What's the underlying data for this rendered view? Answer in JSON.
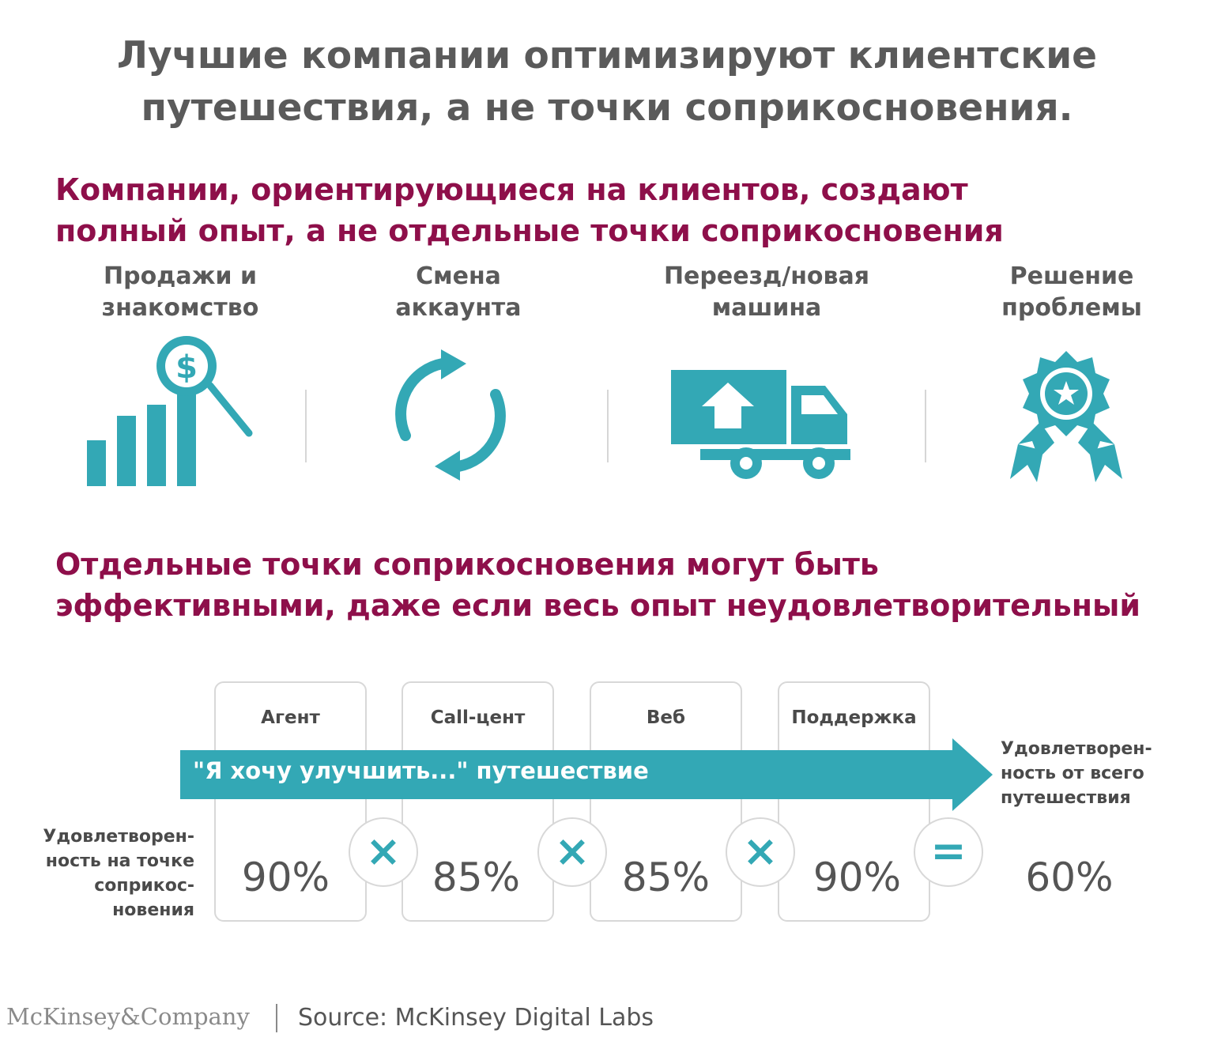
{
  "title": {
    "line1": "Лучшие компании оптимизируют клиентские",
    "line2": "путешествия, а не точки соприкосновения."
  },
  "section1": {
    "line1": "Компании, ориентирующиеся на клиентов, создают",
    "line2": "полный опыт, а не отдельные точки соприкосновения",
    "categories": [
      {
        "line1": "Продажи и",
        "line2": "знакомство",
        "icon": "sales-growth-icon"
      },
      {
        "line1": "Смена",
        "line2": "аккаунта",
        "icon": "refresh-cycle-icon"
      },
      {
        "line1": "Переезд/новая",
        "line2": "машина",
        "icon": "moving-truck-icon"
      },
      {
        "line1": "Решение",
        "line2": "проблемы",
        "icon": "award-ribbon-icon"
      }
    ]
  },
  "section2": {
    "line1": "Отдельные точки соприкосновения могут быть",
    "line2": "эффективными, даже если весь опыт неудовлетворительный"
  },
  "journey": {
    "arrow_label": "\"Я хочу улучшить...\" путешествие",
    "touchpoint_label": {
      "line1": "Удовлетворен-",
      "line2": "ность на точке",
      "line3": "соприкос-",
      "line4": "новения"
    },
    "journey_label": {
      "line1": "Удовлетворен-",
      "line2": "ность от всего",
      "line3": "путешествия"
    },
    "channels": [
      {
        "name": "Агент",
        "value": "90%"
      },
      {
        "name": "Call-цент",
        "value": "85%"
      },
      {
        "name": "Веб",
        "value": "85%"
      },
      {
        "name": "Поддержка",
        "value": "90%"
      }
    ],
    "operators": [
      "×",
      "×",
      "×",
      "="
    ],
    "result": "60%",
    "accent_color": "#33a8b5",
    "headline_color": "#8e0f4a"
  },
  "footer": {
    "logo": "McKinsey&Company",
    "source": "Source: McKinsey Digital Labs"
  }
}
